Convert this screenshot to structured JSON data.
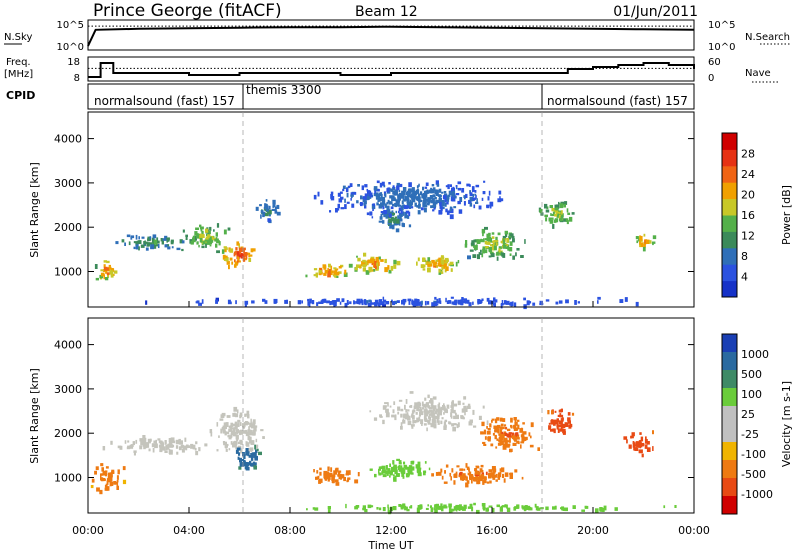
{
  "header": {
    "station": "Prince George (fitACF)",
    "beam": "Beam 12",
    "date": "01/Jun/2011"
  },
  "nsky_panel": {
    "left_label": "N.Sky",
    "right_label": "N.Search",
    "left_ticks": [
      "10^5",
      "10^0"
    ],
    "right_ticks": [
      "10^5",
      "10^0"
    ]
  },
  "freq_panel": {
    "left_label_1": "Freq.",
    "left_label_2": "[MHz]",
    "right_label": "Nave",
    "left_ticks": [
      "18",
      "8"
    ],
    "right_ticks": [
      "60",
      "0"
    ]
  },
  "cpid": {
    "label": "CPID",
    "segments": [
      {
        "name": "normalsound (fast) 157",
        "start_hour": 0,
        "end_hour": 6
      },
      {
        "name": "themis 3300",
        "start_hour": 6,
        "end_hour": 18
      },
      {
        "name": "normalsound (fast) 157",
        "start_hour": 18,
        "end_hour": 24
      }
    ]
  },
  "colors": {
    "power_scale": [
      "#1632c8",
      "#2b52e0",
      "#2f6fb8",
      "#3b8a5a",
      "#54b04a",
      "#c8c828",
      "#f0a000",
      "#f06414",
      "#e63214",
      "#d00000"
    ],
    "velocity_scale": [
      "#1a3fb4",
      "#2a6aa0",
      "#3e8a66",
      "#6acc3a",
      "#c0c0c0",
      "#c0c0c0",
      "#f0b400",
      "#ee7a12",
      "#e84a14",
      "#d00000"
    ]
  },
  "chart_data": [
    {
      "type": "line",
      "name": "nsky-nsearch-panel",
      "x_range": [
        0,
        24
      ],
      "series": [
        {
          "name": "N.Sky",
          "x": [
            0,
            0.3,
            2,
            4,
            6,
            8,
            10,
            12,
            14,
            16,
            18,
            20,
            22,
            24
          ],
          "log10_values": [
            0.4,
            3.5,
            3.7,
            3.8,
            3.9,
            4.0,
            4.0,
            4.1,
            4.0,
            3.9,
            3.8,
            3.7,
            3.6,
            3.5
          ]
        },
        {
          "name": "N.Search",
          "x": [
            0,
            24
          ],
          "log10_values": [
            4.2,
            4.2
          ]
        }
      ]
    },
    {
      "type": "line",
      "name": "frequency-nave-panel",
      "x_range": [
        0,
        24
      ],
      "series": [
        {
          "name": "Freq",
          "x": [
            0,
            0.5,
            1,
            2,
            4,
            6,
            8,
            10,
            12,
            14,
            16,
            18,
            19,
            20,
            21,
            22,
            23,
            24
          ],
          "values": [
            9,
            16,
            11,
            11,
            10,
            11,
            11,
            10,
            11,
            11,
            11,
            11,
            13,
            14,
            15,
            16,
            15,
            13
          ]
        },
        {
          "name": "Nave",
          "x": [
            0,
            24
          ],
          "values": [
            32,
            32
          ]
        }
      ]
    },
    {
      "type": "heatmap",
      "name": "power-panel",
      "xlabel": "",
      "ylabel": "Slant Range [km]",
      "x_range": [
        0,
        24
      ],
      "y_range": [
        200,
        4600
      ],
      "x_ticks": [
        "00:00",
        "04:00",
        "08:00",
        "12:00",
        "16:00",
        "20:00",
        "00:00"
      ],
      "y_ticks": [
        1000,
        2000,
        3000,
        4000
      ],
      "colorbar": {
        "label": "Power [dB]",
        "ticks": [
          4,
          8,
          12,
          16,
          20,
          24,
          28
        ],
        "range": [
          0,
          32
        ]
      },
      "regions": [
        {
          "x": [
            0.2,
            1.2
          ],
          "y": [
            700,
            1400
          ],
          "value": 22
        },
        {
          "x": [
            0.5,
            4.5
          ],
          "y": [
            1500,
            1900
          ],
          "value": 12
        },
        {
          "x": [
            3.5,
            5.8
          ],
          "y": [
            1400,
            2200
          ],
          "value": 17
        },
        {
          "x": [
            5,
            6.8
          ],
          "y": [
            1000,
            1800
          ],
          "value": 26
        },
        {
          "x": [
            6.3,
            7.8
          ],
          "y": [
            2100,
            2700
          ],
          "value": 10
        },
        {
          "x": [
            8.5,
            10.5
          ],
          "y": [
            800,
            1300
          ],
          "value": 24
        },
        {
          "x": [
            10,
            12.5
          ],
          "y": [
            900,
            1500
          ],
          "value": 22
        },
        {
          "x": [
            12.5,
            15
          ],
          "y": [
            900,
            1500
          ],
          "value": 21
        },
        {
          "x": [
            11,
            13
          ],
          "y": [
            1900,
            2600
          ],
          "value": 10
        },
        {
          "x": [
            14.5,
            17.5
          ],
          "y": [
            1200,
            2100
          ],
          "value": 17
        },
        {
          "x": [
            17.5,
            19.5
          ],
          "y": [
            2000,
            2700
          ],
          "value": 17
        },
        {
          "x": [
            21.5,
            22.5
          ],
          "y": [
            1500,
            2000
          ],
          "value": 22
        },
        {
          "x": [
            8,
            17.5
          ],
          "y": [
            2200,
            3200
          ],
          "value": 8
        },
        {
          "x": [
            0,
            24
          ],
          "y": [
            250,
            450
          ],
          "value": 6
        }
      ]
    },
    {
      "type": "heatmap",
      "name": "velocity-panel",
      "xlabel": "Time UT",
      "ylabel": "Slant Range [km]",
      "x_range": [
        0,
        24
      ],
      "y_range": [
        200,
        4600
      ],
      "x_ticks": [
        "00:00",
        "04:00",
        "08:00",
        "12:00",
        "16:00",
        "20:00",
        "00:00"
      ],
      "y_ticks": [
        1000,
        2000,
        3000,
        4000
      ],
      "colorbar": {
        "label": "Velocity [m s-1]",
        "ticks": [
          1000,
          500,
          100,
          25,
          -25,
          -100,
          -500,
          -1000
        ]
      },
      "regions": [
        {
          "x": [
            0,
            1.5
          ],
          "y": [
            600,
            1400
          ],
          "value": -200
        },
        {
          "x": [
            0.5,
            5
          ],
          "y": [
            1500,
            2000
          ],
          "value": 0
        },
        {
          "x": [
            4.5,
            7.2
          ],
          "y": [
            1400,
            2700
          ],
          "value": 0
        },
        {
          "x": [
            5.5,
            7
          ],
          "y": [
            1100,
            1800
          ],
          "value": 300
        },
        {
          "x": [
            8.5,
            11
          ],
          "y": [
            800,
            1300
          ],
          "value": -200
        },
        {
          "x": [
            10.5,
            14
          ],
          "y": [
            900,
            1500
          ],
          "value": 80
        },
        {
          "x": [
            13,
            17.5
          ],
          "y": [
            800,
            1400
          ],
          "value": -300
        },
        {
          "x": [
            15,
            18
          ],
          "y": [
            1500,
            2500
          ],
          "value": -300
        },
        {
          "x": [
            11,
            16
          ],
          "y": [
            2000,
            3000
          ],
          "value": 0
        },
        {
          "x": [
            18,
            19.3
          ],
          "y": [
            1800,
            2700
          ],
          "value": -500
        },
        {
          "x": [
            21,
            22.6
          ],
          "y": [
            1500,
            2100
          ],
          "value": -500
        },
        {
          "x": [
            6,
            24
          ],
          "y": [
            250,
            450
          ],
          "value": 60
        }
      ]
    }
  ]
}
